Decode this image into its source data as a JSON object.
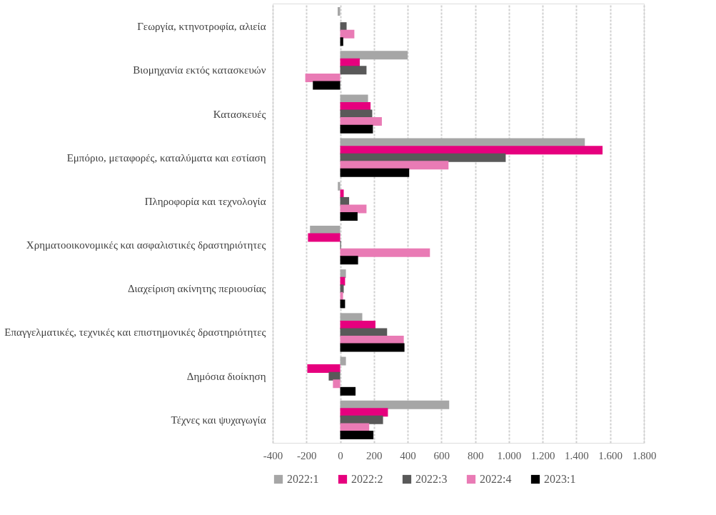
{
  "chart_data": {
    "type": "bar",
    "orientation": "horizontal",
    "categories": [
      "Γεωργία, κτηνοτροφία, αλιεία",
      "Βιομηχανία εκτός κατασκευών",
      "Κατασκευές",
      "Εμπόριο, μεταφορές, καταλύματα και εστίαση",
      "Πληροφορία και τεχνολογία",
      "Χρηματοοικονομικές και ασφαλιστικές δραστηριότητες",
      "Διαχείριση ακίνητης περιουσίας",
      "Επαγγελματικές, τεχνικές και επιστημονικές δραστηριότητες",
      "Δημόσια διοίκηση",
      "Τέχνες και ψυχαγωγία"
    ],
    "series": [
      {
        "name": "2022:1",
        "color": "#a6a6a6",
        "values": [
          -15,
          400,
          165,
          1450,
          -14,
          -179,
          34,
          131,
          34,
          646
        ]
      },
      {
        "name": "2022:2",
        "color": "#e6007e",
        "values": [
          null,
          116,
          180,
          1555,
          21,
          -191,
          29,
          209,
          -195,
          283
        ]
      },
      {
        "name": "2022:3",
        "color": "#595959",
        "values": [
          38,
          156,
          190,
          981,
          53,
          5,
          21,
          278,
          -68,
          254
        ]
      },
      {
        "name": "2022:4",
        "color": "#e97bb5",
        "values": [
          84,
          -207,
          247,
          642,
          156,
          532,
          17,
          377,
          -43,
          172
        ]
      },
      {
        "name": "2023:1",
        "color": "#000000",
        "values": [
          18,
          -162,
          194,
          409,
          103,
          106,
          29,
          381,
          91,
          197
        ]
      }
    ],
    "xlim": [
      -400,
      1800
    ],
    "xticks": [
      -400,
      -200,
      0,
      200,
      400,
      600,
      800,
      {
        "value": 1000,
        "label": "1.000"
      },
      {
        "value": 1200,
        "label": "1.200"
      },
      {
        "value": 1400,
        "label": "1.400"
      },
      {
        "value": 1600,
        "label": "1.600"
      },
      {
        "value": 1800,
        "label": "1.800"
      }
    ],
    "grid": "x",
    "legend": "bottom"
  }
}
